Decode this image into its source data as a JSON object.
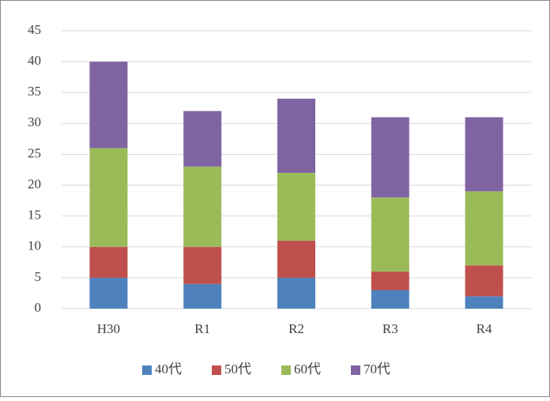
{
  "chart_data": {
    "type": "bar",
    "stacked": true,
    "categories": [
      "H30",
      "R1",
      "R2",
      "R3",
      "R4"
    ],
    "series": [
      {
        "name": "40代",
        "color": "#4f81bd",
        "values": [
          5,
          4,
          5,
          3,
          2
        ]
      },
      {
        "name": "50代",
        "color": "#c0504d",
        "values": [
          5,
          6,
          6,
          3,
          5
        ]
      },
      {
        "name": "60代",
        "color": "#9bbb59",
        "values": [
          16,
          13,
          11,
          12,
          12
        ]
      },
      {
        "name": "70代",
        "color": "#8064a2",
        "values": [
          14,
          9,
          12,
          13,
          12
        ]
      }
    ],
    "ylim": [
      0,
      45
    ],
    "yticks": [
      0,
      5,
      10,
      15,
      20,
      25,
      30,
      35,
      40,
      45
    ],
    "grid": true,
    "legend": "bottom"
  }
}
